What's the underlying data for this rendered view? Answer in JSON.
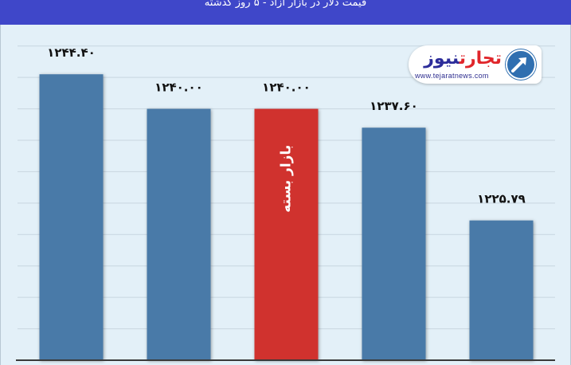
{
  "header": {
    "title": "قیمت دلار در بازار آزاد - ۵ روز گذشته"
  },
  "logo": {
    "brand_part1": "تجارت",
    "brand_part2": "نیوز",
    "url": "www.tejaratnews.com",
    "icon": "tejarat-news-arrow-icon",
    "colors": {
      "part1": "#e0262b",
      "part2": "#2c2c9a",
      "mark": "#2f6fb0"
    }
  },
  "colors": {
    "bar": "#4a7aa8",
    "highlight_bar": "#d0302e",
    "header": "#3f47c9",
    "background": "#e3f0f8"
  },
  "chart_data": {
    "type": "bar",
    "categories": [
      "",
      "",
      "",
      "",
      ""
    ],
    "values": [
      1244.4,
      1240.0,
      1240.0,
      1237.6,
      1225.79
    ],
    "data_labels": [
      "۱۲۴۴.۴۰",
      "۱۲۴۰.۰۰",
      "۱۲۴۰.۰۰",
      "۱۲۳۷.۶۰",
      "۱۲۲۵.۷۹"
    ],
    "highlight_index": 2,
    "highlight_label": "بازار بسته",
    "ylim": [
      1208,
      1250
    ],
    "grid": true,
    "legend": "none"
  }
}
